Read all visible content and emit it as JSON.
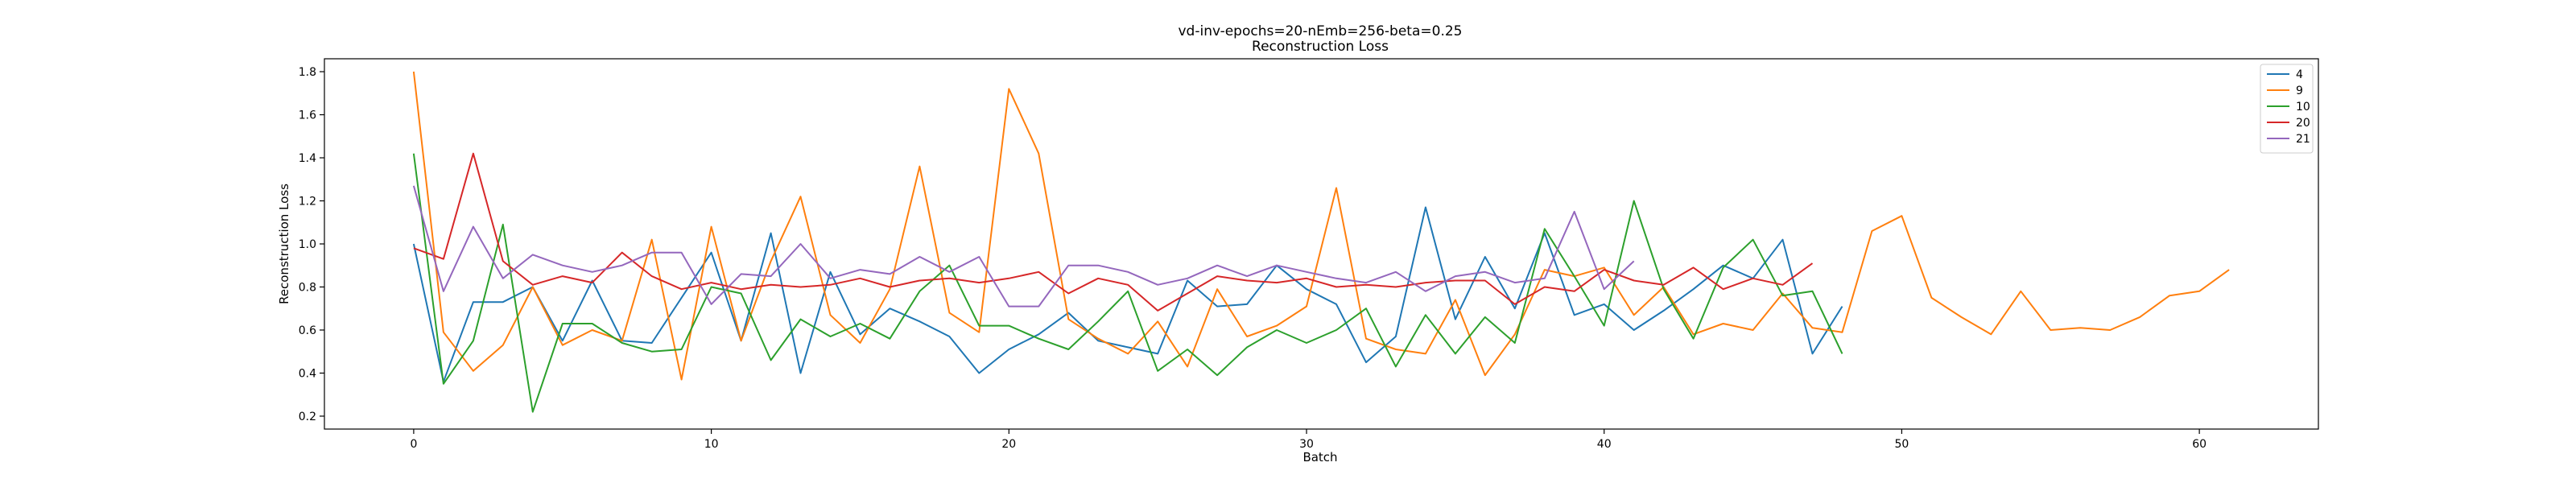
{
  "chart_data": {
    "type": "line",
    "title": "vd-inv-epochs=20-nEmb=256-beta=0.25",
    "subtitle": "Reconstruction Loss",
    "xlabel": "Batch",
    "ylabel": "Reconstruction Loss",
    "xlim": [
      -3,
      64
    ],
    "ylim": [
      0.14,
      1.86
    ],
    "xticks": [
      0,
      10,
      20,
      30,
      40,
      50,
      60
    ],
    "yticks": [
      0.2,
      0.4,
      0.6,
      0.8,
      1.0,
      1.2,
      1.4,
      1.6,
      1.8
    ],
    "grid": false,
    "legend_position": "top-right",
    "series": [
      {
        "name": "4",
        "color": "#1f77b4",
        "values": [
          1.0,
          0.36,
          0.73,
          0.73,
          0.8,
          0.55,
          0.83,
          0.55,
          0.54,
          0.75,
          0.96,
          0.55,
          1.05,
          0.4,
          0.87,
          0.58,
          0.7,
          0.64,
          0.57,
          0.4,
          0.51,
          0.58,
          0.68,
          0.55,
          0.52,
          0.49,
          0.83,
          0.71,
          0.72,
          0.9,
          0.79,
          0.72,
          0.45,
          0.57,
          1.17,
          0.65,
          0.94,
          0.7,
          1.05,
          0.67,
          0.72,
          0.6,
          0.69,
          0.79,
          0.9,
          0.84,
          1.02,
          0.49,
          0.71
        ]
      },
      {
        "name": "9",
        "color": "#ff7f0e",
        "values": [
          1.8,
          0.59,
          0.41,
          0.53,
          0.8,
          0.53,
          0.6,
          0.55,
          1.02,
          0.37,
          1.08,
          0.55,
          0.92,
          1.22,
          0.67,
          0.54,
          0.79,
          1.36,
          0.68,
          0.59,
          1.72,
          1.42,
          0.65,
          0.56,
          0.49,
          0.64,
          0.43,
          0.79,
          0.57,
          0.62,
          0.71,
          1.26,
          0.56,
          0.51,
          0.49,
          0.74,
          0.39,
          0.58,
          0.88,
          0.85,
          0.89,
          0.67,
          0.8,
          0.58,
          0.63,
          0.6,
          0.77,
          0.61,
          0.59,
          1.06,
          1.13,
          0.75,
          0.66,
          0.58,
          0.78,
          0.6,
          0.61,
          0.6,
          0.66,
          0.76,
          0.78,
          0.88
        ]
      },
      {
        "name": "10",
        "color": "#2ca02c",
        "values": [
          1.42,
          0.35,
          0.55,
          1.09,
          0.22,
          0.63,
          0.63,
          0.54,
          0.5,
          0.51,
          0.8,
          0.77,
          0.46,
          0.65,
          0.57,
          0.63,
          0.56,
          0.78,
          0.9,
          0.62,
          0.62,
          0.56,
          0.51,
          0.64,
          0.78,
          0.41,
          0.51,
          0.39,
          0.52,
          0.6,
          0.54,
          0.6,
          0.7,
          0.43,
          0.67,
          0.49,
          0.66,
          0.54,
          1.07,
          0.85,
          0.62,
          1.2,
          0.79,
          0.56,
          0.89,
          1.02,
          0.76,
          0.78,
          0.49
        ]
      },
      {
        "name": "20",
        "color": "#d62728",
        "values": [
          0.98,
          0.93,
          1.42,
          0.92,
          0.81,
          0.85,
          0.82,
          0.96,
          0.85,
          0.79,
          0.82,
          0.79,
          0.81,
          0.8,
          0.81,
          0.84,
          0.8,
          0.83,
          0.84,
          0.82,
          0.84,
          0.87,
          0.77,
          0.84,
          0.81,
          0.69,
          0.77,
          0.85,
          0.83,
          0.82,
          0.84,
          0.8,
          0.81,
          0.8,
          0.82,
          0.83,
          0.83,
          0.72,
          0.8,
          0.78,
          0.88,
          0.83,
          0.81,
          0.89,
          0.79,
          0.84,
          0.81,
          0.91
        ]
      },
      {
        "name": "21",
        "color": "#9467bd",
        "values": [
          1.27,
          0.78,
          1.08,
          0.84,
          0.95,
          0.9,
          0.87,
          0.9,
          0.96,
          0.96,
          0.72,
          0.86,
          0.85,
          1.0,
          0.84,
          0.88,
          0.86,
          0.94,
          0.87,
          0.94,
          0.71,
          0.71,
          0.9,
          0.9,
          0.87,
          0.81,
          0.84,
          0.9,
          0.85,
          0.9,
          0.87,
          0.84,
          0.82,
          0.87,
          0.78,
          0.85,
          0.87,
          0.82,
          0.84,
          1.15,
          0.79,
          0.92
        ]
      }
    ]
  }
}
